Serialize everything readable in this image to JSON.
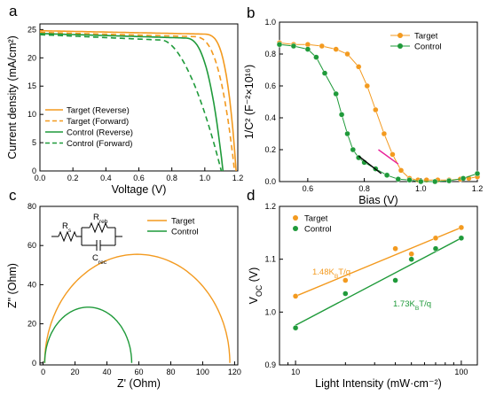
{
  "colors": {
    "target": "#f39a1f",
    "control": "#1f9a3a",
    "fit_black": "#000000",
    "fit_magenta": "#e8209a"
  },
  "chart_data": [
    {
      "panel": "a",
      "type": "line",
      "xlabel": "Voltage (V)",
      "ylabel": "Current density (mA/cm²)",
      "xlim": [
        0,
        1.2
      ],
      "ylim": [
        0,
        26
      ],
      "xticks": [
        "0.0",
        "0.2",
        "0.4",
        "0.6",
        "0.8",
        "1.0",
        "1.2"
      ],
      "yticks": [
        "0",
        "5",
        "10",
        "15",
        "20",
        "25"
      ],
      "legend_position": "bottom-left",
      "series": [
        {
          "name": "Target (Reverse)",
          "color": "target",
          "dash": "solid",
          "jsc": 24.8,
          "voc": 1.19,
          "vk": 0.98,
          "p": 3.6,
          "slope": 0.6
        },
        {
          "name": "Target (Forward)",
          "color": "target",
          "dash": "dashed",
          "jsc": 24.5,
          "voc": 1.18,
          "vk": 0.93,
          "p": 2.8,
          "slope": 0.8
        },
        {
          "name": "Control (Reverse)",
          "color": "control",
          "dash": "solid",
          "jsc": 24.3,
          "voc": 1.11,
          "vk": 0.88,
          "p": 2.6,
          "slope": 0.9
        },
        {
          "name": "Control (Forward)",
          "color": "control",
          "dash": "dashed",
          "jsc": 24.1,
          "voc": 1.1,
          "vk": 0.74,
          "p": 1.8,
          "slope": 1.3
        }
      ]
    },
    {
      "panel": "b",
      "type": "scatter",
      "xlabel": "Bias (V)",
      "ylabel": "1/C² (F⁻²×10¹⁶)",
      "xlim": [
        0.5,
        1.2
      ],
      "ylim": [
        0,
        1.0
      ],
      "xticks": [
        "0.6",
        "0.8",
        "1.0",
        "1.2"
      ],
      "yticks": [
        "0.0",
        "0.2",
        "0.4",
        "0.6",
        "0.8",
        "1.0"
      ],
      "legend_position": "top-right",
      "series": [
        {
          "name": "Target",
          "color": "target",
          "x": [
            0.5,
            0.55,
            0.6,
            0.65,
            0.7,
            0.74,
            0.78,
            0.81,
            0.84,
            0.87,
            0.9,
            0.93,
            0.96,
            0.99,
            1.02,
            1.06,
            1.1,
            1.14,
            1.17,
            1.2
          ],
          "y": [
            0.87,
            0.86,
            0.86,
            0.85,
            0.83,
            0.8,
            0.72,
            0.6,
            0.45,
            0.3,
            0.17,
            0.07,
            0.02,
            0.01,
            0.01,
            0.01,
            0.01,
            0.015,
            0.02,
            0.03
          ]
        },
        {
          "name": "Control",
          "color": "control",
          "x": [
            0.5,
            0.55,
            0.6,
            0.63,
            0.66,
            0.7,
            0.72,
            0.74,
            0.76,
            0.78,
            0.8,
            0.84,
            0.88,
            0.92,
            0.96,
            1.0,
            1.05,
            1.1,
            1.15,
            1.2
          ],
          "y": [
            0.86,
            0.85,
            0.83,
            0.78,
            0.68,
            0.55,
            0.42,
            0.3,
            0.2,
            0.15,
            0.12,
            0.08,
            0.04,
            0.015,
            0.01,
            0.0,
            0.0,
            0.005,
            0.02,
            0.05
          ]
        }
      ],
      "fit_lines": [
        {
          "color": "fit_black",
          "x": [
            0.78,
            0.86
          ],
          "y": [
            0.16,
            0.05
          ]
        },
        {
          "color": "fit_magenta",
          "x": [
            0.85,
            0.92
          ],
          "y": [
            0.2,
            0.11
          ]
        }
      ]
    },
    {
      "panel": "c",
      "type": "line",
      "xlabel": "Z' (Ohm)",
      "ylabel": "Z\" (Ohm)",
      "xlim": [
        -2,
        122
      ],
      "ylim": [
        -1,
        80
      ],
      "xticks": [
        "0",
        "20",
        "40",
        "60",
        "80",
        "100",
        "120"
      ],
      "yticks": [
        "0",
        "20",
        "40",
        "60",
        "80"
      ],
      "legend_position": "top-right",
      "circuit_labels": {
        "rs": "R",
        "rs_sub": "s",
        "rreb": "R",
        "rreb_sub": "reb",
        "crec": "C",
        "crec_sub": "rec"
      },
      "series": [
        {
          "name": "Target",
          "color": "target",
          "x_start": 1,
          "x_end": 117,
          "peak": 55.5
        },
        {
          "name": "Control",
          "color": "control",
          "x_start": 1,
          "x_end": 55.5,
          "peak": 28.5
        }
      ]
    },
    {
      "panel": "d",
      "type": "scatter",
      "xlabel": "Light Intensity (mW·cm⁻²)",
      "ylabel": "V",
      "ylabel_sub": "OC",
      "ylabel_tail": " (V)",
      "xscale": "log",
      "xlim": [
        8,
        125
      ],
      "ylim": [
        0.9,
        1.2
      ],
      "xticks": [
        "10",
        "100"
      ],
      "yticks": [
        "0.9",
        "1.0",
        "1.1",
        "1.2"
      ],
      "legend_position": "top-left",
      "series": [
        {
          "name": "Target",
          "color": "target",
          "x": [
            10,
            20,
            40,
            50,
            70,
            100
          ],
          "y": [
            1.03,
            1.06,
            1.12,
            1.11,
            1.14,
            1.16
          ],
          "fit": [
            1.03,
            1.16
          ]
        },
        {
          "name": "Control",
          "color": "control",
          "x": [
            10,
            20,
            40,
            50,
            70,
            100
          ],
          "y": [
            0.97,
            1.035,
            1.06,
            1.1,
            1.12,
            1.14
          ],
          "fit": [
            0.975,
            1.14
          ]
        }
      ],
      "annotations": [
        {
          "color": "target",
          "pre": "1.48K",
          "sub": "B",
          "post": "T/q"
        },
        {
          "color": "control",
          "pre": "1.73K",
          "sub": "B",
          "post": "T/q"
        }
      ]
    }
  ]
}
